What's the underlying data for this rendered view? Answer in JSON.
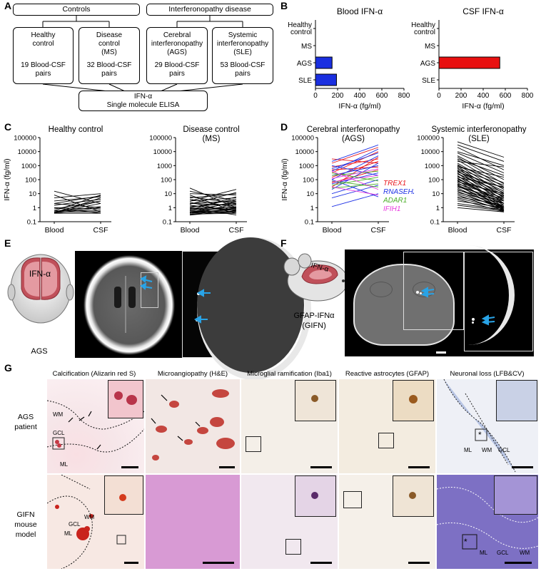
{
  "panels": {
    "A": "A",
    "B": "B",
    "C": "C",
    "D": "D",
    "E": "E",
    "F": "F",
    "G": "G"
  },
  "panelA": {
    "groups": [
      "Controls",
      "Interferonopathy disease"
    ],
    "boxes": [
      {
        "title1": "Healthy",
        "title2": "control",
        "title3": "",
        "count1": "19 Blood-CSF",
        "count2": "pairs"
      },
      {
        "title1": "Disease",
        "title2": "control",
        "title3": "(MS)",
        "count1": "32 Blood-CSF",
        "count2": "pairs"
      },
      {
        "title1": "Cerebral",
        "title2": "interferonopathy",
        "title3": "(AGS)",
        "count1": "29 Blood-CSF",
        "count2": "pairs"
      },
      {
        "title1": "Systemic",
        "title2": "interferonopathy",
        "title3": "(SLE)",
        "count1": "53 Blood-CSF",
        "count2": "pairs"
      }
    ],
    "assay1": "IFN-α",
    "assay2": "Single molecule ELISA"
  },
  "chart_data": [
    {
      "type": "bar",
      "orientation": "horizontal",
      "title": "Blood IFN-α",
      "categories": [
        "Healthy control",
        "MS",
        "AGS",
        "SLE"
      ],
      "values": [
        0,
        0,
        150,
        190
      ],
      "colors": [
        "#1a2fe0",
        "#1a2fe0",
        "#1a2fe0",
        "#1a2fe0"
      ],
      "xlabel": "IFN-α (fg/ml)",
      "xlim": [
        0,
        800
      ],
      "xticks": [
        "0",
        "200",
        "400",
        "600",
        "800"
      ]
    },
    {
      "type": "bar",
      "orientation": "horizontal",
      "title": "CSF IFN-α",
      "categories": [
        "Healthy control",
        "MS",
        "AGS",
        "SLE"
      ],
      "values": [
        0,
        0,
        550,
        0
      ],
      "colors": [
        "#e81010",
        "#e81010",
        "#e81010",
        "#e81010"
      ],
      "xlabel": "IFN-α (fg/ml)",
      "xlim": [
        0,
        800
      ],
      "xticks": [
        "0",
        "200",
        "400",
        "600",
        "800"
      ]
    },
    {
      "type": "line",
      "scale": "log",
      "title": "Healthy control",
      "categories": [
        "Blood",
        "CSF"
      ],
      "ylabel": "IFN-α (fg/ml)",
      "ylim": [
        0.1,
        100000
      ],
      "yticks": [
        "0.1",
        "1",
        "10",
        "100",
        "1000",
        "10000",
        "100000"
      ],
      "pairs": [
        [
          15,
          2
        ],
        [
          8,
          0.5
        ],
        [
          5,
          10
        ],
        [
          3,
          6
        ],
        [
          2,
          1
        ],
        [
          1.5,
          4
        ],
        [
          1,
          0.8
        ],
        [
          0.8,
          3
        ],
        [
          0.6,
          8
        ],
        [
          0.5,
          1.2
        ],
        [
          0.5,
          0.5
        ],
        [
          0.45,
          2
        ],
        [
          0.4,
          5
        ],
        [
          0.4,
          0.4
        ],
        [
          0.4,
          1
        ],
        [
          0.6,
          0.6
        ],
        [
          1,
          0.4
        ],
        [
          2,
          7
        ],
        [
          0.5,
          3
        ]
      ]
    },
    {
      "type": "line",
      "scale": "log",
      "title": "Disease control (MS)",
      "categories": [
        "Blood",
        "CSF"
      ],
      "ylim": [
        0.1,
        100000
      ],
      "yticks": [
        "0.1",
        "1",
        "10",
        "100",
        "1000",
        "10000",
        "100000"
      ],
      "pairs": [
        [
          25,
          1
        ],
        [
          15,
          3
        ],
        [
          10,
          8
        ],
        [
          8,
          0.5
        ],
        [
          6,
          2
        ],
        [
          5,
          10
        ],
        [
          4,
          1
        ],
        [
          3,
          5
        ],
        [
          2.5,
          0.4
        ],
        [
          2,
          3
        ],
        [
          2,
          1.5
        ],
        [
          1.5,
          0.6
        ],
        [
          1.2,
          2
        ],
        [
          1,
          4
        ],
        [
          1,
          0.3
        ],
        [
          0.9,
          1
        ],
        [
          0.8,
          0.8
        ],
        [
          0.7,
          6
        ],
        [
          0.6,
          0.5
        ],
        [
          0.6,
          2.5
        ],
        [
          0.5,
          0.7
        ],
        [
          0.5,
          1.2
        ],
        [
          0.5,
          0.4
        ],
        [
          0.45,
          3
        ],
        [
          0.4,
          0.9
        ],
        [
          0.4,
          0.5
        ],
        [
          0.4,
          1.8
        ],
        [
          0.35,
          0.4
        ],
        [
          0.3,
          0.6
        ],
        [
          0.3,
          1
        ],
        [
          1.8,
          12
        ],
        [
          3,
          20
        ]
      ]
    },
    {
      "type": "line",
      "scale": "log",
      "title": "Cerebral interferonopathy (AGS)",
      "categories": [
        "Blood",
        "CSF"
      ],
      "ylabel": "IFN-α (fg/ml)",
      "ylim": [
        0.1,
        100000
      ],
      "yticks": [
        "0.1",
        "1",
        "10",
        "100",
        "1000",
        "10000",
        "100000"
      ],
      "legend": [
        {
          "name": "TREX1",
          "color": "#e8161c"
        },
        {
          "name": "RNASEH2B",
          "color": "#2033e6"
        },
        {
          "name": "ADAR1",
          "color": "#4caf2a"
        },
        {
          "name": "IFIH1",
          "color": "#e83adf"
        }
      ],
      "pairs": [
        {
          "g": 0,
          "b": 3000,
          "c": 1500
        },
        {
          "g": 0,
          "b": 1500,
          "c": 20000
        },
        {
          "g": 0,
          "b": 800,
          "c": 3000
        },
        {
          "g": 0,
          "b": 500,
          "c": 800
        },
        {
          "g": 0,
          "b": 300,
          "c": 10000
        },
        {
          "g": 0,
          "b": 150,
          "c": 2000
        },
        {
          "g": 0,
          "b": 60,
          "c": 500
        },
        {
          "g": 0,
          "b": 30,
          "c": 4000
        },
        {
          "g": 1,
          "b": 2000,
          "c": 30000
        },
        {
          "g": 1,
          "b": 1000,
          "c": 200
        },
        {
          "g": 1,
          "b": 600,
          "c": 8000
        },
        {
          "g": 1,
          "b": 400,
          "c": 15000
        },
        {
          "g": 1,
          "b": 200,
          "c": 1000
        },
        {
          "g": 1,
          "b": 100,
          "c": 5000
        },
        {
          "g": 1,
          "b": 50,
          "c": 300
        },
        {
          "g": 1,
          "b": 20,
          "c": 1500
        },
        {
          "g": 1,
          "b": 10,
          "c": 100
        },
        {
          "g": 1,
          "b": 5,
          "c": 40
        },
        {
          "g": 1,
          "b": 1.2,
          "c": 10
        },
        {
          "g": 1,
          "b": 100,
          "c": 6
        },
        {
          "g": 2,
          "b": 300,
          "c": 80
        },
        {
          "g": 2,
          "b": 200,
          "c": 400
        },
        {
          "g": 2,
          "b": 80,
          "c": 30
        },
        {
          "g": 2,
          "b": 40,
          "c": 150
        },
        {
          "g": 2,
          "b": 25,
          "c": 50
        },
        {
          "g": 3,
          "b": 400,
          "c": 20
        },
        {
          "g": 3,
          "b": 120,
          "c": 600
        },
        {
          "g": 3,
          "b": 70,
          "c": 200
        },
        {
          "g": 3,
          "b": 30,
          "c": 8
        }
      ]
    },
    {
      "type": "line",
      "scale": "log",
      "title": "Systemic interferonopathy (SLE)",
      "categories": [
        "Blood",
        "CSF"
      ],
      "ylim": [
        0.1,
        100000
      ],
      "yticks": [
        "0.1",
        "1",
        "10",
        "100",
        "1000",
        "10000",
        "100000"
      ],
      "pairs": [
        [
          50000,
          4000
        ],
        [
          30000,
          2000
        ],
        [
          20000,
          500
        ],
        [
          10000,
          1000
        ],
        [
          8000,
          300
        ],
        [
          5000,
          100
        ],
        [
          4000,
          50
        ],
        [
          3000,
          200
        ],
        [
          2500,
          30
        ],
        [
          2000,
          800
        ],
        [
          1500,
          20
        ],
        [
          1200,
          10
        ],
        [
          1000,
          60
        ],
        [
          900,
          5
        ],
        [
          800,
          150
        ],
        [
          700,
          3
        ],
        [
          600,
          40
        ],
        [
          500,
          15
        ],
        [
          450,
          2
        ],
        [
          400,
          8
        ],
        [
          350,
          25
        ],
        [
          300,
          1
        ],
        [
          280,
          6
        ],
        [
          250,
          12
        ],
        [
          200,
          0.8
        ],
        [
          180,
          4
        ],
        [
          150,
          30
        ],
        [
          130,
          2
        ],
        [
          120,
          1.5
        ],
        [
          100,
          7
        ],
        [
          90,
          0.6
        ],
        [
          80,
          3
        ],
        [
          70,
          10
        ],
        [
          60,
          1
        ],
        [
          50,
          5
        ],
        [
          45,
          0.5
        ],
        [
          40,
          2
        ],
        [
          35,
          1.2
        ],
        [
          30,
          4
        ],
        [
          25,
          0.8
        ],
        [
          20,
          1
        ],
        [
          18,
          3
        ],
        [
          15,
          0.7
        ],
        [
          12,
          2
        ],
        [
          10,
          1
        ],
        [
          8,
          0.6
        ],
        [
          6,
          1.5
        ],
        [
          5,
          0.8
        ],
        [
          4,
          0.5
        ],
        [
          3,
          1
        ],
        [
          2,
          0.7
        ],
        [
          1.5,
          0.6
        ],
        [
          1,
          0.5
        ]
      ]
    }
  ],
  "panelE": {
    "label": "IFN-α",
    "caption": "AGS"
  },
  "panelF": {
    "label": "IFN-α",
    "caption1": "GFAP-IFNα",
    "caption2": "(GIFN)"
  },
  "panelG": {
    "columns": [
      "Calcification (Alizarin red S)",
      "Microangiopathy (H&E)",
      "Microglial ramification (Iba1)",
      "Reactive astrocytes (GFAP)",
      "Neuronal loss (LFB&CV)"
    ],
    "rows": [
      {
        "line1": "AGS",
        "line2": "patient"
      },
      {
        "line1": "GIFN",
        "line2": "mouse",
        "line3": "model"
      }
    ],
    "tissue_labels": {
      "wm": "WM",
      "gcl": "GCL",
      "ml": "ML",
      "star": "*"
    }
  },
  "colors": {
    "blood_bar": "#1a2fe0",
    "csf_bar": "#e81010",
    "trex1": "#e8161c",
    "rnaseh2b": "#2033e6",
    "adar1": "#4caf2a",
    "ifih1": "#e83adf",
    "arrow": "#29a3e6",
    "brain_red": "#c44a55"
  }
}
